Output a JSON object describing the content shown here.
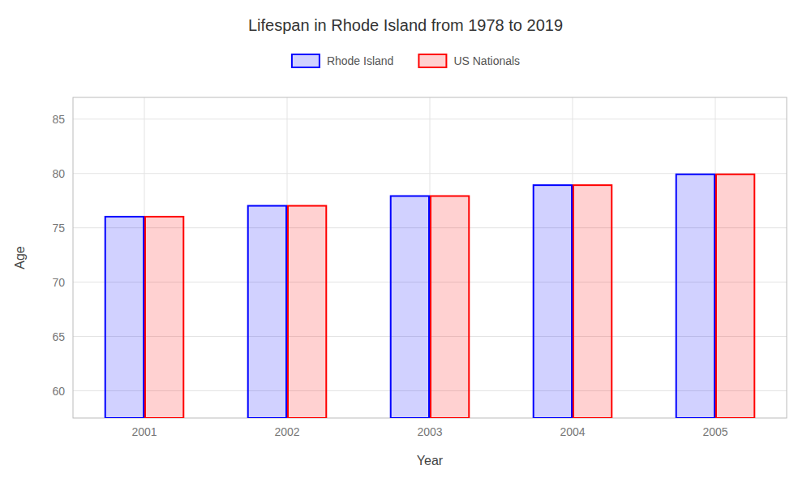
{
  "chart_data": {
    "type": "bar",
    "title": "Lifespan in Rhode Island from 1978 to 2019",
    "x_label": "Year",
    "y_label": "Age",
    "categories": [
      "2001",
      "2002",
      "2003",
      "2004",
      "2005"
    ],
    "series": [
      {
        "name": "Rhode Island",
        "color": "#0000ff",
        "values": [
          76.1,
          77.1,
          78.0,
          79.0,
          80.0
        ]
      },
      {
        "name": "US Nationals",
        "color": "#ff0000",
        "values": [
          76.1,
          77.1,
          78.0,
          79.0,
          80.0
        ]
      }
    ],
    "ylim": [
      57.5,
      87
    ],
    "yticks": [
      60,
      65,
      70,
      75,
      80,
      85
    ],
    "grid": true,
    "legend": "top"
  }
}
